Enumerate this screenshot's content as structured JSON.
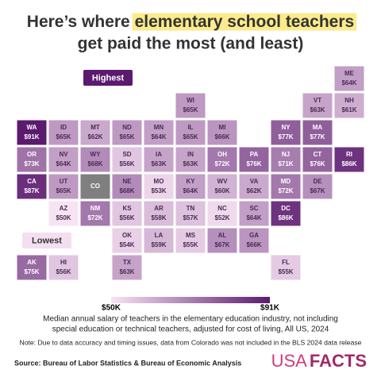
{
  "chart_data": {
    "type": "choropleth",
    "title": {
      "before": "Here’s where ",
      "highlight": "elementary school teachers",
      "after": "get paid the most (and least)"
    },
    "categories": [
      "ME",
      "WI",
      "VT",
      "NH",
      "WA",
      "ID",
      "MT",
      "ND",
      "MN",
      "IL",
      "MI",
      "NY",
      "MA",
      "OR",
      "NV",
      "WY",
      "SD",
      "IA",
      "IN",
      "OH",
      "PA",
      "NJ",
      "CT",
      "RI",
      "CA",
      "UT",
      "CO",
      "NE",
      "MO",
      "KY",
      "WV",
      "VA",
      "MD",
      "DE",
      "AZ",
      "NM",
      "KS",
      "AR",
      "TN",
      "NC",
      "SC",
      "DC",
      "OK",
      "LA",
      "MS",
      "AL",
      "GA",
      "AK",
      "HI",
      "TX",
      "FL"
    ],
    "values": [
      64000,
      65000,
      63000,
      61000,
      91000,
      65000,
      62000,
      65000,
      64000,
      65000,
      66000,
      77000,
      77000,
      73000,
      64000,
      68000,
      56000,
      63000,
      63000,
      72000,
      76000,
      71000,
      76000,
      86000,
      87000,
      65000,
      null,
      68000,
      53000,
      64000,
      60000,
      62000,
      72000,
      67000,
      50000,
      72000,
      56000,
      58000,
      57000,
      52000,
      64000,
      86000,
      54000,
      59000,
      55000,
      67000,
      66000,
      75000,
      56000,
      63000,
      55000
    ],
    "value_labels": [
      "$64K",
      "$65K",
      "$63K",
      "$61K",
      "$91K",
      "$65K",
      "$62K",
      "$65K",
      "$64K",
      "$65K",
      "$66K",
      "$77K",
      "$77K",
      "$73K",
      "$64K",
      "$68K",
      "$56K",
      "$63K",
      "$63K",
      "$72K",
      "$76K",
      "$71K",
      "$76K",
      "$86K",
      "$87K",
      "$65K",
      null,
      "$68K",
      "$53K",
      "$64K",
      "$60K",
      "$62K",
      "$72K",
      "$67K",
      "$50K",
      "$72K",
      "$56K",
      "$58K",
      "$57K",
      "$52K",
      "$64K",
      "$86K",
      "$54K",
      "$59K",
      "$55K",
      "$67K",
      "$66K",
      "$75K",
      "$56K",
      "$63K",
      "$55K"
    ],
    "missing_color": "#7f7f7f",
    "legend": {
      "min": {
        "value": 50000,
        "label": "$50K"
      },
      "max": {
        "value": 91000,
        "label": "$91K"
      },
      "colors": [
        "#f7e4f3",
        "#5b1a6e"
      ]
    },
    "annotations": {
      "highest": "Highest",
      "lowest": "Lowest"
    },
    "caption": [
      "Median annual salary of teachers in the elementary education industry, not including",
      "special education or technical teachers, adjusted for cost of living, All US, 2024"
    ],
    "note": "Note: Due to data accuracy and timing issues, data from Colorado was not included in the BLS 2024 data release",
    "source": "Source: Bureau of Labor Statistics & Bureau of Economic Analysis",
    "logo": [
      "USA",
      "FACTS"
    ]
  }
}
